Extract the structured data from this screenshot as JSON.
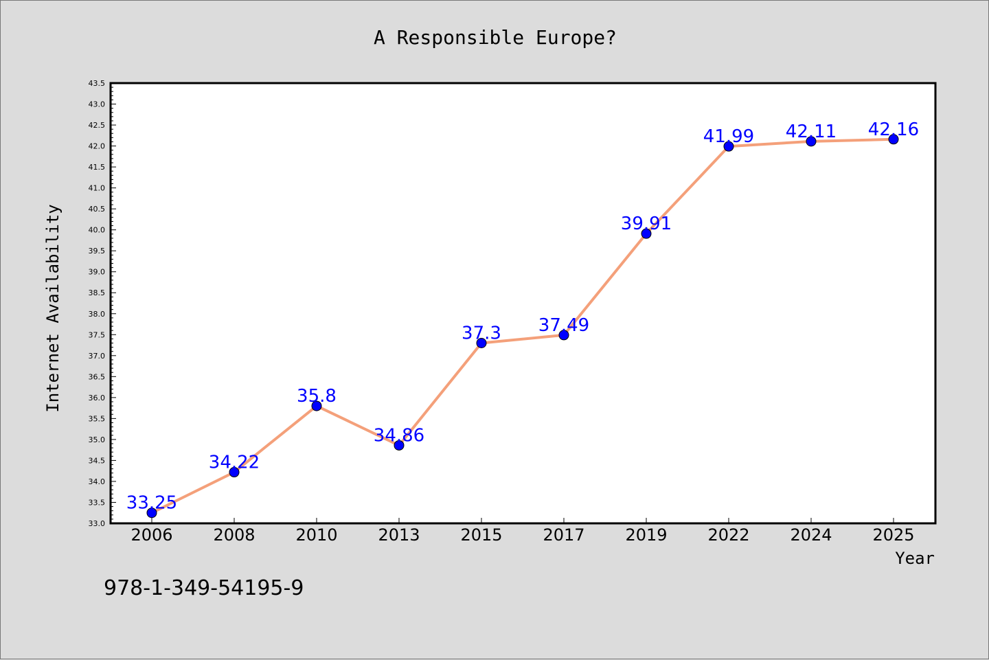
{
  "chart_data": {
    "type": "line",
    "title": "A Responsible Europe?",
    "xlabel": "Year",
    "ylabel": "Internet Availability",
    "categories": [
      "2006",
      "2008",
      "2010",
      "2013",
      "2015",
      "2017",
      "2019",
      "2022",
      "2024",
      "2025"
    ],
    "series": [
      {
        "values": [
          33.25,
          34.22,
          35.8,
          34.86,
          37.3,
          37.49,
          39.91,
          41.99,
          42.11,
          42.16
        ],
        "data_labels": [
          "33.25",
          "34.22",
          "35.8",
          "34.86",
          "37.3",
          "37.49",
          "39.91",
          "41.99",
          "42.11",
          "42.16"
        ],
        "line_color": "#f4a07a",
        "marker_color": "#0000ff"
      }
    ],
    "ylim": [
      33.0,
      43.5
    ],
    "yticks": [
      "33.0",
      "33.5",
      "34.0",
      "34.5",
      "35.0",
      "35.5",
      "36.0",
      "36.5",
      "37.0",
      "37.5",
      "38.0",
      "38.5",
      "39.0",
      "39.5",
      "40.0",
      "40.5",
      "41.0",
      "41.5",
      "42.0",
      "42.5",
      "43.0",
      "43.5"
    ],
    "grid": false,
    "legend": "none",
    "label_color": "#0000ff",
    "background_color": "#dcdcdc",
    "plot_background_color": "#ffffff"
  },
  "footnote": "978-1-349-54195-9"
}
